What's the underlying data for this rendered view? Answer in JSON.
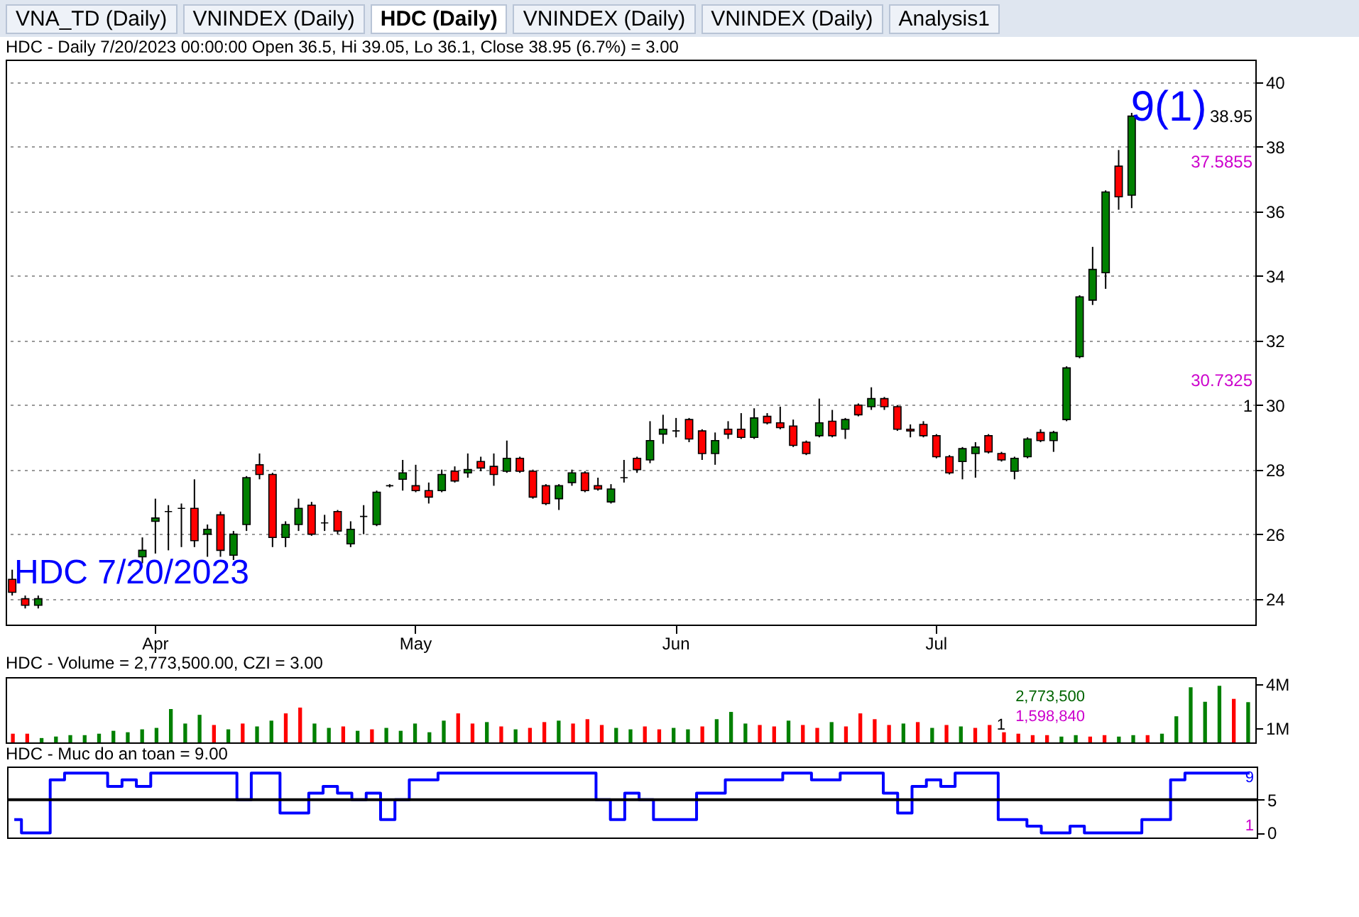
{
  "chart_data": [
    {
      "type": "candlestick",
      "title": "HDC - Daily 7/20/2023 00:00:00 Open 36.5, Hi 39.05, Lo 36.1, Close 38.95 (6.7%)  = 3.00",
      "categories": [
        null,
        null,
        null,
        null,
        null,
        null,
        null,
        null,
        null,
        null,
        null,
        "Apr",
        null,
        null,
        null,
        null,
        null,
        null,
        null,
        null,
        null,
        null,
        null,
        null,
        null,
        null,
        null,
        null,
        null,
        null,
        null,
        "May",
        null,
        null,
        null,
        null,
        null,
        null,
        null,
        null,
        null,
        null,
        null,
        null,
        null,
        null,
        null,
        null,
        null,
        null,
        null,
        "Jun",
        null,
        null,
        null,
        null,
        null,
        null,
        null,
        null,
        null,
        null,
        null,
        null,
        null,
        null,
        null,
        null,
        null,
        null,
        null,
        "Jul",
        null,
        null,
        null,
        null,
        null,
        null,
        null,
        null,
        null,
        null,
        null,
        null,
        null,
        null,
        null,
        null,
        null,
        null,
        null,
        null,
        null,
        null,
        null,
        null
      ],
      "ohlc": [
        [
          24.6,
          24.9,
          24.1,
          24.2
        ],
        [
          24.0,
          24.1,
          23.7,
          23.8
        ],
        [
          23.8,
          24.1,
          23.7,
          24.0
        ],
        null,
        null,
        null,
        null,
        null,
        null,
        null,
        [
          25.3,
          25.9,
          25.1,
          25.5
        ],
        [
          26.4,
          27.1,
          25.4,
          26.5
        ],
        [
          26.7,
          26.9,
          25.5,
          26.7
        ],
        [
          26.8,
          26.95,
          25.6,
          26.8
        ],
        [
          26.8,
          27.7,
          25.6,
          25.8
        ],
        [
          26.0,
          26.3,
          25.3,
          26.15
        ],
        [
          26.6,
          26.7,
          25.3,
          25.5
        ],
        [
          25.35,
          26.1,
          25.2,
          26.0
        ],
        [
          26.3,
          27.8,
          26.1,
          27.75
        ],
        [
          28.15,
          28.5,
          27.7,
          27.85
        ],
        [
          27.85,
          27.9,
          25.6,
          25.9
        ],
        [
          25.9,
          26.4,
          25.6,
          26.3
        ],
        [
          26.3,
          27.1,
          26.1,
          26.8
        ],
        [
          26.9,
          27.0,
          25.95,
          26.0
        ],
        [
          26.35,
          26.6,
          26.1,
          26.35
        ],
        [
          26.7,
          26.75,
          26.0,
          26.1
        ],
        [
          25.7,
          26.4,
          25.6,
          26.15
        ],
        [
          26.55,
          26.9,
          26.0,
          26.55
        ],
        [
          26.3,
          27.35,
          26.25,
          27.3
        ],
        [
          27.5,
          27.55,
          27.45,
          27.5
        ],
        [
          27.7,
          28.3,
          27.35,
          27.9
        ],
        [
          27.5,
          28.15,
          27.3,
          27.35
        ],
        [
          27.35,
          27.6,
          26.95,
          27.15
        ],
        [
          27.35,
          28.0,
          27.3,
          27.85
        ],
        [
          27.95,
          28.1,
          27.6,
          27.65
        ],
        [
          27.9,
          28.5,
          27.75,
          28.0
        ],
        [
          28.25,
          28.4,
          27.95,
          28.05
        ],
        [
          28.1,
          28.5,
          27.5,
          27.85
        ],
        [
          27.95,
          28.9,
          27.9,
          28.35
        ],
        [
          28.35,
          28.4,
          27.9,
          27.95
        ],
        [
          27.95,
          28.0,
          27.1,
          27.15
        ],
        [
          27.5,
          27.55,
          26.9,
          26.95
        ],
        [
          27.1,
          27.55,
          26.75,
          27.5
        ],
        [
          27.6,
          28.0,
          27.5,
          27.9
        ],
        [
          27.9,
          27.95,
          27.3,
          27.35
        ],
        [
          27.5,
          27.75,
          27.35,
          27.4
        ],
        [
          27.0,
          27.55,
          26.95,
          27.4
        ],
        [
          27.75,
          28.3,
          27.6,
          27.75
        ],
        [
          28.35,
          28.4,
          27.9,
          28.0
        ],
        [
          28.3,
          29.5,
          28.2,
          28.9
        ],
        [
          29.1,
          29.7,
          28.8,
          29.25
        ],
        [
          29.2,
          29.6,
          29.0,
          29.2
        ],
        [
          29.55,
          29.6,
          28.85,
          28.95
        ],
        [
          29.2,
          29.25,
          28.3,
          28.5
        ],
        [
          28.5,
          29.15,
          28.15,
          28.9
        ],
        [
          29.25,
          29.5,
          28.95,
          29.1
        ],
        [
          29.25,
          29.75,
          28.95,
          29.0
        ],
        [
          29.0,
          29.9,
          28.95,
          29.6
        ],
        [
          29.65,
          29.75,
          29.4,
          29.45
        ],
        [
          29.45,
          29.95,
          29.25,
          29.3
        ],
        [
          29.35,
          29.55,
          28.7,
          28.75
        ],
        [
          28.85,
          28.9,
          28.45,
          28.5
        ],
        [
          29.05,
          30.2,
          29.0,
          29.45
        ],
        [
          29.5,
          29.85,
          29.0,
          29.05
        ],
        [
          29.25,
          29.6,
          28.95,
          29.55
        ],
        [
          30.0,
          30.05,
          29.65,
          29.7
        ],
        [
          29.95,
          30.55,
          29.85,
          30.2
        ],
        [
          30.2,
          30.25,
          29.85,
          29.95
        ],
        [
          29.95,
          30.0,
          29.2,
          29.25
        ],
        [
          29.25,
          29.4,
          29.0,
          29.2
        ],
        [
          29.4,
          29.5,
          29.0,
          29.05
        ],
        [
          29.05,
          29.1,
          28.35,
          28.4
        ],
        [
          28.4,
          28.45,
          27.85,
          27.9
        ],
        [
          28.25,
          28.7,
          27.7,
          28.65
        ],
        [
          28.5,
          28.85,
          27.75,
          28.7
        ],
        [
          29.05,
          29.1,
          28.5,
          28.55
        ],
        [
          28.5,
          28.55,
          28.25,
          28.3
        ],
        [
          27.95,
          28.4,
          27.7,
          28.35
        ],
        [
          28.4,
          29.0,
          28.35,
          28.95
        ],
        [
          29.15,
          29.25,
          28.85,
          28.9
        ],
        [
          28.9,
          29.2,
          28.55,
          29.15
        ],
        [
          29.55,
          31.2,
          29.5,
          31.15
        ],
        [
          31.5,
          33.4,
          31.45,
          33.35
        ],
        [
          33.25,
          34.9,
          33.1,
          34.2
        ],
        [
          34.1,
          36.65,
          33.6,
          36.6
        ],
        [
          37.4,
          37.9,
          36.05,
          36.45
        ],
        [
          36.5,
          39.05,
          36.1,
          38.95
        ],
        null,
        null,
        null,
        null,
        null,
        null,
        null,
        null,
        null
      ],
      "ylim": [
        23.2,
        40.7
      ],
      "yticks": [
        24,
        26,
        28,
        30,
        32,
        34,
        36,
        38,
        40
      ],
      "grid": "y",
      "annotations": [
        "HDC 7/20/2023",
        "9(1)",
        "38.95",
        "37.5855",
        "30.7325",
        "1",
        "VNA_TD (Daily)",
        "VNINDEX (Daily)",
        "HDC (Daily)",
        "VNINDEX (Daily)",
        "VNINDEX (Daily)",
        "Analysis1"
      ]
    },
    {
      "type": "bar",
      "title": "HDC - Volume = 2,773,500.00, CZI = 3.00",
      "categories": [
        null,
        null,
        null,
        null,
        null,
        null,
        null,
        null,
        null,
        null,
        null,
        null,
        null,
        null,
        null,
        null,
        null,
        null,
        null,
        null,
        null,
        null,
        null,
        null,
        null,
        null,
        null,
        null,
        null,
        null,
        null,
        null,
        null,
        null,
        null,
        null,
        null,
        null,
        null,
        null,
        null,
        null,
        null,
        null,
        null,
        null,
        null,
        null,
        null,
        null,
        null,
        null,
        null,
        null,
        null,
        null,
        null,
        null,
        null,
        null,
        null,
        null,
        null,
        null,
        null,
        null,
        null,
        null,
        null,
        null,
        null,
        null,
        null,
        null,
        null,
        null,
        null,
        null,
        null,
        null,
        null,
        null,
        null,
        null,
        null,
        null,
        null
      ],
      "values": [
        600000,
        600000,
        300000,
        400000,
        500000,
        500000,
        600000,
        800000,
        700000,
        900000,
        1000000,
        2300000,
        1300000,
        1900000,
        1200000,
        900000,
        1300000,
        1100000,
        1500000,
        2000000,
        2400000,
        1300000,
        1000000,
        1100000,
        800000,
        900000,
        1000000,
        800000,
        1300000,
        700000,
        1500000,
        2000000,
        1300000,
        1400000,
        1100000,
        900000,
        1000000,
        1400000,
        1500000,
        1300000,
        1600000,
        1200000,
        1000000,
        900000,
        1100000,
        900000,
        1000000,
        900000,
        1100000,
        1600000,
        2100000,
        1300000,
        1200000,
        1100000,
        1500000,
        1200000,
        1000000,
        1400000,
        1100000,
        2000000,
        1600000,
        1200000,
        1300000,
        1400000,
        1000000,
        1200000,
        1100000,
        1000000,
        1200000,
        700000,
        600000,
        500000,
        500000,
        400000,
        500000,
        400000,
        500000,
        400000,
        500000,
        500000,
        600000,
        1800000,
        3800000,
        2800000,
        3900000,
        3000000,
        2773500
      ],
      "colors": [
        "#ff0000",
        "#ff0000",
        "#008000",
        "#008000",
        "#008000",
        "#008000",
        "#008000",
        "#008000",
        "#008000",
        "#008000",
        "#008000",
        "#008000",
        "#008000",
        "#008000",
        "#ff0000",
        "#008000",
        "#ff0000",
        "#008000",
        "#008000",
        "#ff0000",
        "#ff0000",
        "#008000",
        "#008000",
        "#ff0000",
        "#008000",
        "#ff0000",
        "#008000",
        "#008000",
        "#008000",
        "#008000",
        "#008000",
        "#ff0000",
        "#ff0000",
        "#008000",
        "#ff0000",
        "#008000",
        "#ff0000",
        "#ff0000",
        "#008000",
        "#ff0000",
        "#ff0000",
        "#ff0000",
        "#008000",
        "#008000",
        "#ff0000",
        "#ff0000",
        "#008000",
        "#008000",
        "#ff0000",
        "#008000",
        "#008000",
        "#008000",
        "#ff0000",
        "#ff0000",
        "#008000",
        "#ff0000",
        "#ff0000",
        "#008000",
        "#ff0000",
        "#ff0000",
        "#ff0000",
        "#ff0000",
        "#008000",
        "#ff0000",
        "#008000",
        "#ff0000",
        "#008000",
        "#ff0000",
        "#ff0000",
        "#ff0000",
        "#ff0000",
        "#ff0000",
        "#ff0000",
        "#008000",
        "#008000",
        "#ff0000",
        "#ff0000",
        "#008000",
        "#008000",
        "#ff0000",
        "#008000",
        "#008000",
        "#008000",
        "#008000",
        "#008000",
        "#ff0000",
        "#008000"
      ],
      "ylim": [
        0,
        4500000
      ],
      "yticks": [
        {
          "value": 1000000,
          "label": "1M"
        },
        {
          "value": 4000000,
          "label": "4M"
        }
      ],
      "tick_labels": "y",
      "annotations": [
        "2,773,500",
        "1,598,840",
        "1"
      ]
    },
    {
      "type": "step",
      "title": "HDC - Muc do an toan = 9.00",
      "categories": [
        null,
        null,
        null,
        null,
        null,
        null,
        null,
        null,
        null,
        null,
        null,
        null,
        null,
        null,
        null,
        null,
        null,
        null,
        null,
        null,
        null,
        null,
        null,
        null,
        null,
        null,
        null,
        null,
        null,
        null,
        null,
        null,
        null,
        null,
        null,
        null,
        null,
        null,
        null,
        null,
        null,
        null,
        null,
        null,
        null,
        null,
        null,
        null,
        null,
        null,
        null,
        null,
        null,
        null,
        null,
        null,
        null,
        null,
        null,
        null,
        null,
        null,
        null,
        null,
        null,
        null,
        null,
        null,
        null,
        null,
        null,
        null,
        null,
        null,
        null,
        null,
        null,
        null,
        null,
        null,
        null,
        null,
        null,
        null,
        null,
        null,
        null
      ],
      "series": [
        {
          "color": "#0000ff",
          "values": [
            2,
            0,
            0,
            8,
            9,
            9,
            9,
            7,
            8,
            7,
            9,
            9,
            9,
            9,
            9,
            9,
            5,
            9,
            9,
            3,
            3,
            6,
            7,
            6,
            5,
            6,
            2,
            5,
            8,
            8,
            9,
            9,
            9,
            9,
            9,
            9,
            9,
            9,
            9,
            9,
            9,
            5,
            2,
            6,
            5,
            2,
            2,
            2,
            6,
            6,
            8,
            8,
            8,
            8,
            9,
            9,
            8,
            8,
            9,
            9,
            9,
            6,
            3,
            7,
            8,
            7,
            9,
            9,
            9,
            2,
            2,
            1,
            0,
            0,
            1,
            0,
            0,
            0,
            0,
            2,
            2,
            8,
            9,
            9,
            9,
            9,
            9
          ]
        }
      ],
      "ylim": [
        -0.7,
        10
      ],
      "yticks": [
        0,
        5
      ],
      "tick_labels": "y",
      "marker": "none",
      "ref_lines": [
        {
          "axis": "y",
          "value": 5,
          "color": "#000000"
        }
      ],
      "annotations": [
        "9",
        "1"
      ]
    }
  ]
}
